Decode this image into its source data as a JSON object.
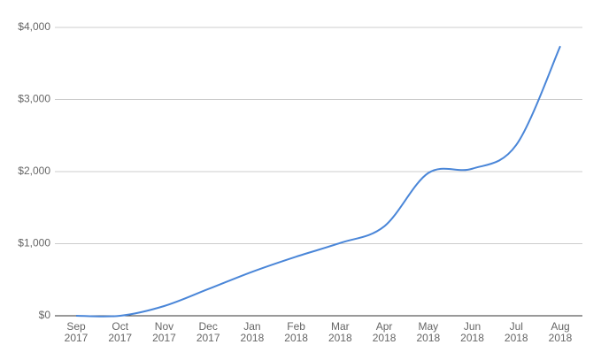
{
  "chart_data": {
    "type": "line",
    "categories": [
      "Sep 2017",
      "Oct 2017",
      "Nov 2017",
      "Dec 2017",
      "Jan 2018",
      "Feb 2018",
      "Mar 2018",
      "Apr 2018",
      "May 2018",
      "Jun 2018",
      "Jul 2018",
      "Aug 2018"
    ],
    "values": [
      0,
      0,
      135,
      370,
      610,
      820,
      1010,
      1240,
      1980,
      2040,
      2370,
      3740
    ],
    "color": "#4a86d8",
    "ylim": [
      0,
      4000
    ],
    "yticks": [
      {
        "value": 0,
        "label": "$0"
      },
      {
        "value": 1000,
        "label": "$1,000"
      },
      {
        "value": 2000,
        "label": "$2,000"
      },
      {
        "value": 3000,
        "label": "$3,000"
      },
      {
        "value": 4000,
        "label": "$4,000"
      }
    ],
    "grid": true
  }
}
